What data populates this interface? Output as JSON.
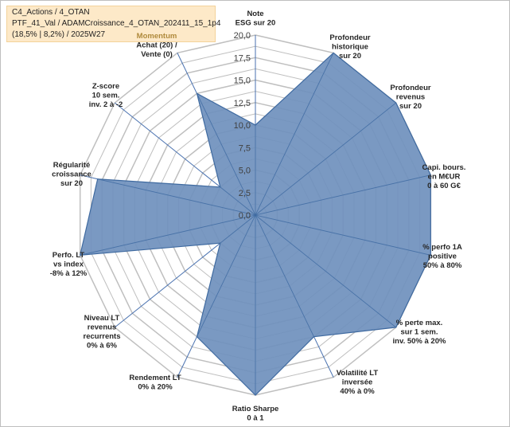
{
  "title_box": {
    "line1": "C4_Actions / 4_OTAN",
    "line2": "PTF_41_Val / ADAMCroissance_4_OTAN_202411_15_1p4",
    "line3": "(18,5% | 8,2%) / 2025W27"
  },
  "chart_data": {
    "type": "radar",
    "rmax": 20,
    "ticks": [
      "0,0",
      "2,5",
      "5,0",
      "7,5",
      "10,0",
      "12,5",
      "15,0",
      "17,5",
      "20,0"
    ],
    "tick_values": [
      0,
      2.5,
      5,
      7.5,
      10,
      12.5,
      15,
      17.5,
      20
    ],
    "grid_rings": 16,
    "colors": {
      "fill": "#6f90bd",
      "stroke": "#3f6aa0",
      "spoke": "#4a72b0",
      "grid": "#bfbfbf"
    },
    "axes": [
      {
        "label": [
          "Note",
          "ESG sur 20"
        ],
        "value": 10
      },
      {
        "label": [
          "Profondeur",
          "historique",
          "sur 20"
        ],
        "value": 20
      },
      {
        "label": [
          "Profondeur",
          "revenus",
          "sur 20"
        ],
        "value": 20
      },
      {
        "label": [
          "Capi. bours.",
          "en M€UR",
          "0 à 60 G€"
        ],
        "value": 20
      },
      {
        "label": [
          "% perfo 1A",
          "positive",
          "50% à 80%"
        ],
        "value": 20
      },
      {
        "label": [
          "% perte max.",
          "sur 1 sem.",
          "inv. 50% à 20%"
        ],
        "value": 20
      },
      {
        "label": [
          "Volatilité LT",
          "inversée",
          "40% à 0%"
        ],
        "value": 15
      },
      {
        "label": [
          "Ratio Sharpe",
          "0 à 1"
        ],
        "value": 20
      },
      {
        "label": [
          "Rendement LT",
          "0% à 20%"
        ],
        "value": 15
      },
      {
        "label": [
          "Niveau LT",
          "revenus",
          "recurrents",
          "0% à 6%"
        ],
        "value": 5
      },
      {
        "label": [
          "Perfo. LT",
          "vs index",
          "-8% à 12%"
        ],
        "value": 20
      },
      {
        "label": [
          "Régularité",
          "croissance",
          "sur 20"
        ],
        "value": 18
      },
      {
        "label": [
          "Z-score",
          "10 sem.",
          "inv. 2 à -2"
        ],
        "value": 5
      },
      {
        "label": [
          "Momentum",
          "Achat (20) /",
          "Vente (0)"
        ],
        "value": 15
      }
    ]
  }
}
